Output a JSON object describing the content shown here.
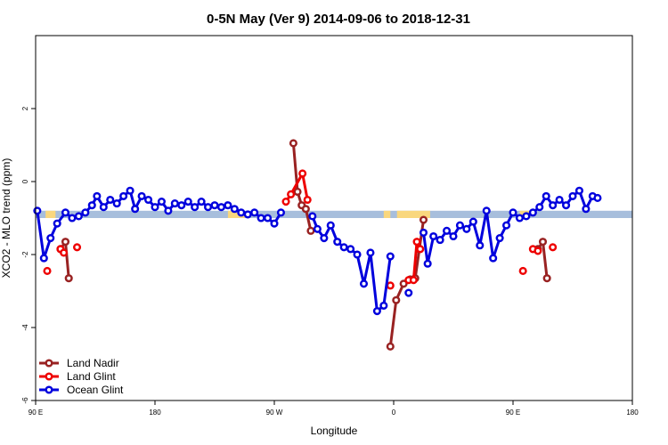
{
  "chart_data": {
    "type": "line",
    "title": "0-5N May (Ver 9)   2014-09-06 to 2018-12-31",
    "xlabel": "Longitude",
    "ylabel": "XCO2 - MLO trend (ppm)",
    "xlim": [
      90,
      450
    ],
    "ylim": [
      -6,
      4
    ],
    "x_ticks": [
      {
        "value": 90,
        "label": "90 E"
      },
      {
        "value": 162,
        "label": "180"
      },
      {
        "value": 234,
        "label": "90 W"
      },
      {
        "value": 306,
        "label": "0"
      },
      {
        "value": 378,
        "label": "90 E"
      },
      {
        "value": 450,
        "label": "180"
      }
    ],
    "y_ticks": [
      {
        "value": -6,
        "label": "-6"
      },
      {
        "value": -4,
        "label": "-4"
      },
      {
        "value": -2,
        "label": "-2"
      },
      {
        "value": 0,
        "label": "0"
      },
      {
        "value": 2,
        "label": "2"
      }
    ],
    "reference_band": {
      "y_range": [
        -1.0,
        -0.8
      ],
      "color": "#a7bedc",
      "highlight_color": "#f9d77e",
      "highlight_ranges": [
        [
          96,
          102
        ],
        [
          206,
          216
        ],
        [
          300,
          304
        ],
        [
          308,
          328
        ],
        [
          382,
          388
        ]
      ]
    },
    "series": [
      {
        "name": "Land Nadir",
        "color": "#992222",
        "segments": [
          [
            [
              105,
              -1.85
            ],
            [
              108,
              -1.65
            ],
            [
              110,
              -2.65
            ]
          ],
          [
            [
              245.5,
              1.05
            ],
            [
              248,
              -0.28
            ],
            [
              250.5,
              -0.65
            ],
            [
              253,
              -0.75
            ],
            [
              256,
              -1.35
            ]
          ],
          [
            [
              304,
              -4.52
            ],
            [
              307.5,
              -3.25
            ],
            [
              312,
              -2.8
            ],
            [
              316,
              -2.68
            ],
            [
              319,
              -2.65
            ],
            [
              321.5,
              -1.85
            ],
            [
              324,
              -1.05
            ]
          ],
          [
            [
              393,
              -1.85
            ],
            [
              396,
              -1.65
            ],
            [
              398.5,
              -2.65
            ]
          ]
        ]
      },
      {
        "name": "Land Glint",
        "color": "#ee0000",
        "segments": [
          [
            [
              97,
              -2.45
            ]
          ],
          [
            [
              105,
              -1.85
            ],
            [
              107,
              -1.95
            ]
          ],
          [
            [
              115,
              -1.8
            ]
          ],
          [
            [
              241,
              -0.55
            ],
            [
              244,
              -0.35
            ],
            [
              251,
              0.22
            ],
            [
              254,
              -0.5
            ]
          ],
          [
            [
              304,
              -2.85
            ]
          ],
          [
            [
              315,
              -2.7
            ],
            [
              318,
              -2.7
            ],
            [
              320,
              -1.65
            ],
            [
              322,
              -1.85
            ]
          ],
          [
            [
              384,
              -2.45
            ]
          ],
          [
            [
              390,
              -1.85
            ],
            [
              393,
              -1.9
            ]
          ],
          [
            [
              402,
              -1.8
            ]
          ]
        ]
      },
      {
        "name": "Ocean Glint",
        "color": "#0000dd",
        "segments": [
          [
            [
              91,
              -0.8
            ],
            [
              95,
              -2.1
            ],
            [
              99,
              -1.55
            ],
            [
              103,
              -1.15
            ],
            [
              108,
              -0.85
            ],
            [
              112,
              -1.0
            ],
            [
              116,
              -0.95
            ],
            [
              120,
              -0.85
            ],
            [
              124,
              -0.65
            ],
            [
              127,
              -0.4
            ],
            [
              131,
              -0.7
            ],
            [
              135,
              -0.5
            ],
            [
              139,
              -0.6
            ],
            [
              143,
              -0.4
            ],
            [
              147,
              -0.25
            ],
            [
              150,
              -0.75
            ],
            [
              154,
              -0.4
            ],
            [
              158,
              -0.5
            ],
            [
              162,
              -0.7
            ],
            [
              166,
              -0.55
            ],
            [
              170,
              -0.8
            ],
            [
              174,
              -0.6
            ],
            [
              178,
              -0.65
            ],
            [
              182,
              -0.55
            ],
            [
              186,
              -0.7
            ],
            [
              190,
              -0.55
            ],
            [
              194,
              -0.7
            ],
            [
              198,
              -0.65
            ],
            [
              202,
              -0.7
            ],
            [
              206,
              -0.65
            ],
            [
              210,
              -0.75
            ],
            [
              214,
              -0.85
            ],
            [
              218,
              -0.9
            ],
            [
              222,
              -0.85
            ],
            [
              226,
              -1.0
            ],
            [
              230,
              -1.0
            ],
            [
              234,
              -1.15
            ],
            [
              238,
              -0.85
            ]
          ],
          [
            [
              257,
              -0.95
            ],
            [
              260,
              -1.3
            ],
            [
              264,
              -1.55
            ],
            [
              268,
              -1.2
            ],
            [
              272,
              -1.65
            ],
            [
              276,
              -1.8
            ],
            [
              280,
              -1.85
            ],
            [
              284,
              -2.0
            ],
            [
              288,
              -2.8
            ],
            [
              292,
              -1.95
            ],
            [
              296,
              -3.55
            ],
            [
              300,
              -3.4
            ],
            [
              304,
              -2.05
            ]
          ],
          [
            [
              315,
              -3.05
            ]
          ],
          [
            [
              324,
              -1.4
            ],
            [
              326.5,
              -2.25
            ],
            [
              330,
              -1.5
            ],
            [
              334,
              -1.6
            ],
            [
              338,
              -1.35
            ],
            [
              342,
              -1.5
            ],
            [
              346,
              -1.2
            ],
            [
              350,
              -1.3
            ],
            [
              354,
              -1.1
            ],
            [
              358,
              -1.75
            ],
            [
              362,
              -0.8
            ],
            [
              366,
              -2.1
            ],
            [
              370,
              -1.55
            ],
            [
              374,
              -1.2
            ],
            [
              378,
              -0.85
            ],
            [
              382,
              -1.0
            ],
            [
              386,
              -0.95
            ],
            [
              390,
              -0.85
            ],
            [
              394,
              -0.7
            ],
            [
              398,
              -0.4
            ],
            [
              402,
              -0.65
            ],
            [
              406,
              -0.5
            ],
            [
              410,
              -0.65
            ],
            [
              414,
              -0.4
            ],
            [
              418,
              -0.25
            ],
            [
              422,
              -0.75
            ],
            [
              426,
              -0.4
            ],
            [
              429,
              -0.45
            ]
          ]
        ]
      }
    ],
    "legend_position": "bottom-left",
    "grid": false
  }
}
